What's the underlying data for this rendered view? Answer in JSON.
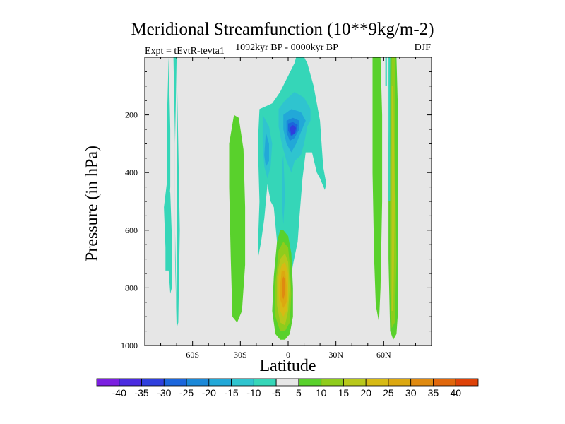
{
  "colors": {
    "background": "#ffffff",
    "plot_bg": "#e6e6e6",
    "levels": [
      "#7b1fe0",
      "#4a2be0",
      "#2f3fdd",
      "#1b66dc",
      "#1a88d8",
      "#22a8d8",
      "#2fc4cf",
      "#35d6b8",
      "#e6e6e6",
      "#59d12c",
      "#8fcc1c",
      "#b8c81b",
      "#d7ba14",
      "#dca810",
      "#df8a10",
      "#e0670c",
      "#de4208"
    ]
  },
  "chart_data": {
    "type": "heatmap",
    "title": "Meridional Streamfunction (10**9kg/m-2)",
    "subtitle_left": "Expt = tEvtR-tevta1",
    "subtitle_center": "1092kyr BP - 0000kyr BP",
    "subtitle_right": "DJF",
    "xlabel": "Latitude",
    "ylabel": "Pressure (in hPa)",
    "x_range": [
      -90,
      90
    ],
    "y_range": [
      0,
      1000
    ],
    "y_inverted": true,
    "x_ticks": [
      {
        "value": -60,
        "label": "60S"
      },
      {
        "value": -30,
        "label": "30S"
      },
      {
        "value": 0,
        "label": "0"
      },
      {
        "value": 30,
        "label": "30N"
      },
      {
        "value": 60,
        "label": "60N"
      }
    ],
    "y_ticks": [
      {
        "value": 200,
        "label": "200"
      },
      {
        "value": 400,
        "label": "400"
      },
      {
        "value": 600,
        "label": "600"
      },
      {
        "value": 800,
        "label": "800"
      },
      {
        "value": 1000,
        "label": "1000"
      }
    ],
    "colorbar": {
      "levels": [
        -40,
        -35,
        -30,
        -25,
        -20,
        -15,
        -10,
        -5,
        5,
        10,
        15,
        20,
        25,
        30,
        35,
        40
      ],
      "labels": [
        "-40",
        "-35",
        "-30",
        "-25",
        "-20",
        "-15",
        "-10",
        "-5",
        "5",
        "10",
        "15",
        "20",
        "25",
        "30",
        "35",
        "40"
      ]
    },
    "regions": [
      {
        "level": 7,
        "points": [
          [
            -77,
            660
          ],
          [
            -78,
            520
          ],
          [
            -76,
            430
          ],
          [
            -74,
            470
          ],
          [
            -73,
            620
          ],
          [
            -73,
            800
          ],
          [
            -74,
            820
          ],
          [
            -75,
            740
          ],
          [
            -77,
            740
          ]
        ]
      },
      {
        "level": 7,
        "points": [
          [
            -75,
            0
          ],
          [
            -74,
            250
          ],
          [
            -74,
            450
          ],
          [
            -75,
            540
          ],
          [
            -76,
            450
          ],
          [
            -76,
            200
          ]
        ]
      },
      {
        "level": 7,
        "points": [
          [
            -70,
            0
          ],
          [
            -69,
            300
          ],
          [
            -68,
            600
          ],
          [
            -69,
            920
          ],
          [
            -70,
            940
          ],
          [
            -71,
            700
          ],
          [
            -71,
            300
          ],
          [
            -72,
            0
          ]
        ]
      },
      {
        "level": 8,
        "points": [
          [
            -70,
            0
          ],
          [
            -70,
            300
          ],
          [
            -70,
            600
          ],
          [
            -70,
            880
          ],
          [
            -71,
            600
          ],
          [
            -71,
            300
          ]
        ]
      },
      {
        "level": 9,
        "points": [
          [
            -34,
            200
          ],
          [
            -31,
            210
          ],
          [
            -28,
            320
          ],
          [
            -27,
            520
          ],
          [
            -27,
            720
          ],
          [
            -29,
            880
          ],
          [
            -32,
            920
          ],
          [
            -35,
            900
          ],
          [
            -36,
            700
          ],
          [
            -37,
            450
          ],
          [
            -37,
            300
          ]
        ]
      },
      {
        "level": 7,
        "points": [
          [
            -18,
            180
          ],
          [
            -10,
            160
          ],
          [
            -5,
            120
          ],
          [
            4,
            20
          ],
          [
            5,
            0
          ],
          [
            10,
            0
          ],
          [
            12,
            20
          ],
          [
            16,
            100
          ],
          [
            20,
            220
          ],
          [
            22,
            380
          ],
          [
            24,
            440
          ],
          [
            23,
            460
          ],
          [
            20,
            420
          ],
          [
            18,
            400
          ],
          [
            15,
            330
          ],
          [
            11,
            330
          ],
          [
            9,
            420
          ],
          [
            7,
            560
          ],
          [
            6,
            640
          ],
          [
            3,
            720
          ],
          [
            0,
            820
          ],
          [
            -2,
            860
          ],
          [
            -5,
            860
          ],
          [
            -7,
            640
          ],
          [
            -9,
            520
          ],
          [
            -11,
            500
          ],
          [
            -13,
            440
          ],
          [
            -15,
            560
          ],
          [
            -17,
            640
          ],
          [
            -19,
            700
          ],
          [
            -19,
            660
          ],
          [
            -18,
            500
          ],
          [
            -19,
            300
          ]
        ]
      },
      {
        "level": 6,
        "points": [
          [
            -16,
            200
          ],
          [
            -12,
            240
          ],
          [
            -10,
            300
          ],
          [
            -11,
            380
          ],
          [
            -13,
            420
          ],
          [
            -15,
            380
          ],
          [
            -16,
            300
          ]
        ]
      },
      {
        "level": 5,
        "points": [
          [
            -14,
            260
          ],
          [
            -12,
            300
          ],
          [
            -12,
            360
          ],
          [
            -14,
            380
          ],
          [
            -15,
            340
          ]
        ]
      },
      {
        "level": 6,
        "points": [
          [
            -3,
            340
          ],
          [
            -2,
            480
          ],
          [
            -3,
            580
          ],
          [
            -4,
            500
          ],
          [
            -4,
            380
          ]
        ]
      },
      {
        "level": 6,
        "points": [
          [
            -6,
            180
          ],
          [
            -2,
            150
          ],
          [
            4,
            120
          ],
          [
            10,
            140
          ],
          [
            14,
            180
          ],
          [
            14,
            220
          ],
          [
            12,
            240
          ],
          [
            10,
            300
          ],
          [
            8,
            340
          ],
          [
            4,
            360
          ],
          [
            2,
            400
          ],
          [
            -1,
            360
          ],
          [
            -4,
            300
          ],
          [
            -6,
            240
          ]
        ]
      },
      {
        "level": 5,
        "points": [
          [
            -3,
            200
          ],
          [
            2,
            180
          ],
          [
            8,
            190
          ],
          [
            11,
            220
          ],
          [
            8,
            260
          ],
          [
            5,
            300
          ],
          [
            2,
            330
          ],
          [
            -1,
            300
          ],
          [
            -3,
            250
          ]
        ]
      },
      {
        "level": 4,
        "points": [
          [
            -1,
            220
          ],
          [
            3,
            210
          ],
          [
            7,
            220
          ],
          [
            7,
            250
          ],
          [
            4,
            280
          ],
          [
            1,
            290
          ],
          [
            -1,
            260
          ]
        ]
      },
      {
        "level": 3,
        "points": [
          [
            0,
            230
          ],
          [
            3,
            225
          ],
          [
            6,
            235
          ],
          [
            5,
            260
          ],
          [
            2,
            275
          ],
          [
            0,
            255
          ]
        ]
      },
      {
        "level": 2,
        "points": [
          [
            1,
            245
          ],
          [
            3,
            235
          ],
          [
            5,
            245
          ],
          [
            4,
            265
          ],
          [
            2,
            270
          ]
        ]
      },
      {
        "level": 9,
        "points": [
          [
            -7,
            640
          ],
          [
            -5,
            600
          ],
          [
            -3,
            600
          ],
          [
            0,
            620
          ],
          [
            2,
            680
          ],
          [
            3,
            800
          ],
          [
            3,
            900
          ],
          [
            1,
            960
          ],
          [
            -2,
            980
          ],
          [
            -5,
            980
          ],
          [
            -8,
            960
          ],
          [
            -10,
            880
          ],
          [
            -9,
            760
          ]
        ]
      },
      {
        "level": 10,
        "points": [
          [
            -6,
            670
          ],
          [
            -3,
            640
          ],
          [
            0,
            660
          ],
          [
            1,
            720
          ],
          [
            2,
            820
          ],
          [
            1,
            920
          ],
          [
            -2,
            950
          ],
          [
            -5,
            950
          ],
          [
            -8,
            900
          ],
          [
            -8,
            780
          ]
        ]
      },
      {
        "level": 11,
        "points": [
          [
            -5,
            700
          ],
          [
            -2,
            680
          ],
          [
            0,
            710
          ],
          [
            1,
            800
          ],
          [
            0,
            880
          ],
          [
            -2,
            930
          ],
          [
            -5,
            920
          ],
          [
            -7,
            860
          ],
          [
            -7,
            760
          ]
        ]
      },
      {
        "level": 12,
        "points": [
          [
            -4,
            720
          ],
          [
            -2,
            710
          ],
          [
            0,
            750
          ],
          [
            0,
            840
          ],
          [
            -1,
            880
          ],
          [
            -3,
            900
          ],
          [
            -5,
            880
          ],
          [
            -6,
            820
          ],
          [
            -6,
            760
          ]
        ]
      },
      {
        "level": 13,
        "points": [
          [
            -4,
            740
          ],
          [
            -2,
            740
          ],
          [
            -1,
            790
          ],
          [
            -1,
            850
          ],
          [
            -3,
            870
          ],
          [
            -5,
            840
          ],
          [
            -5,
            790
          ]
        ]
      },
      {
        "level": 14,
        "points": [
          [
            -3,
            760
          ],
          [
            -2,
            770
          ],
          [
            -2,
            820
          ],
          [
            -3,
            840
          ],
          [
            -4,
            820
          ],
          [
            -4,
            780
          ]
        ]
      },
      {
        "level": 9,
        "points": [
          [
            53,
            0
          ],
          [
            58,
            0
          ],
          [
            59,
            200
          ],
          [
            59,
            500
          ],
          [
            58,
            800
          ],
          [
            57,
            920
          ],
          [
            55,
            860
          ],
          [
            54,
            700
          ],
          [
            53,
            400
          ]
        ]
      },
      {
        "level": 9,
        "points": [
          [
            64,
            0
          ],
          [
            68,
            0
          ],
          [
            69,
            200
          ],
          [
            69,
            600
          ],
          [
            69,
            880
          ],
          [
            68,
            960
          ],
          [
            66,
            980
          ],
          [
            64,
            950
          ],
          [
            63,
            700
          ],
          [
            63,
            300
          ]
        ]
      },
      {
        "level": 10,
        "points": [
          [
            65,
            0
          ],
          [
            67,
            0
          ],
          [
            67,
            300
          ],
          [
            68,
            700
          ],
          [
            67,
            920
          ],
          [
            65,
            940
          ],
          [
            64,
            800
          ],
          [
            64,
            400
          ]
        ]
      },
      {
        "level": 11,
        "points": [
          [
            65,
            100
          ],
          [
            66,
            100
          ],
          [
            67,
            500
          ],
          [
            66,
            880
          ],
          [
            65,
            880
          ],
          [
            65,
            500
          ]
        ]
      },
      {
        "level": 7,
        "points": [
          [
            61,
            0
          ],
          [
            62,
            0
          ],
          [
            62,
            100
          ],
          [
            61,
            100
          ]
        ]
      },
      {
        "level": 7,
        "points": [
          [
            63,
            0
          ],
          [
            64,
            0
          ],
          [
            64,
            500
          ],
          [
            63,
            500
          ]
        ]
      }
    ]
  }
}
